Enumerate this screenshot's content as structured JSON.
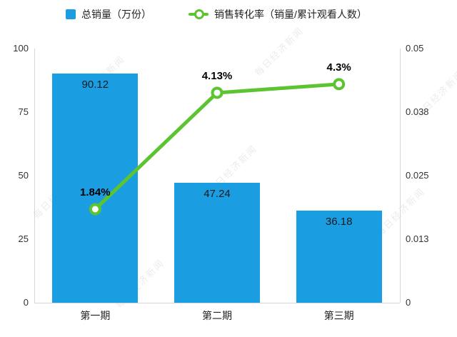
{
  "watermark": "每日经济新闻",
  "legend": [
    {
      "label": "总销量（万份）",
      "type": "bar",
      "color": "#1B9DE2"
    },
    {
      "label": "销售转化率（销量/累计观看人数）",
      "type": "line",
      "color": "#5CC430"
    }
  ],
  "chart_data": {
    "type": "bar",
    "categories": [
      "第一期",
      "第二期",
      "第三期"
    ],
    "series": [
      {
        "name": "总销量（万份）",
        "type": "bar",
        "axis": "left",
        "color": "#1B9DE2",
        "values": [
          90.12,
          47.24,
          36.18
        ],
        "labels": [
          "90.12",
          "47.24",
          "36.18"
        ]
      },
      {
        "name": "销售转化率（销量/累计观看人数）",
        "type": "line",
        "axis": "right",
        "color": "#5CC430",
        "values": [
          0.0184,
          0.0413,
          0.043
        ],
        "labels": [
          "1.84%",
          "4.13%",
          "4.3%"
        ]
      }
    ],
    "left_axis": {
      "ticks": [
        "0",
        "25",
        "50",
        "75",
        "100"
      ],
      "min": 0,
      "max": 100
    },
    "right_axis": {
      "ticks": [
        "0",
        "0.013",
        "0.025",
        "0.038",
        "0.05"
      ],
      "min": 0,
      "max": 0.05
    },
    "grid": false,
    "legend_position": "top"
  }
}
